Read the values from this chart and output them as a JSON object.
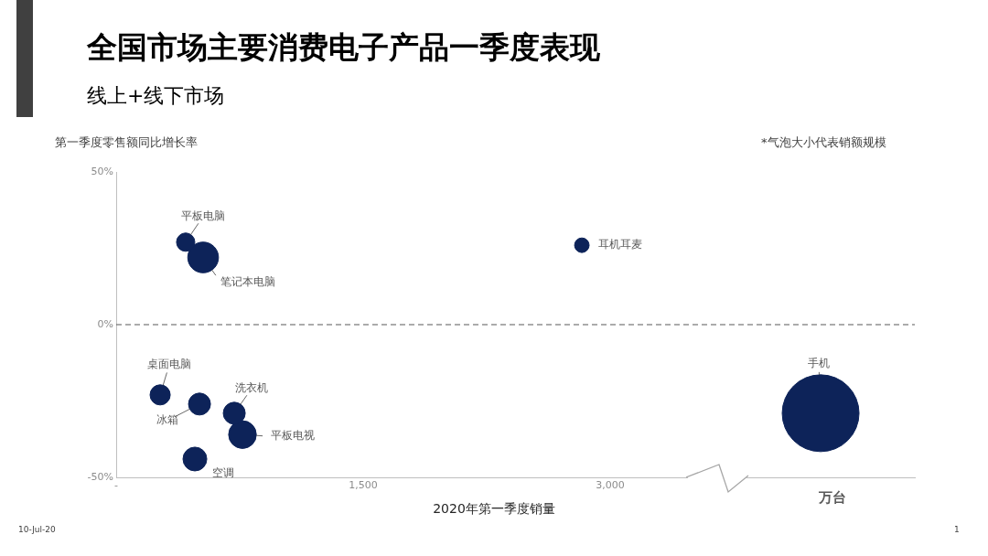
{
  "chart_data": {
    "type": "bubble",
    "title": "全国市场主要消费电子产品一季度表现",
    "subtitle": "线上+线下市场",
    "ylabel": "第一季度零售额同比增长率",
    "xlabel": "2020年第一季度销量",
    "annotations": [
      "*气泡大小代表销额规模",
      "万台",
      "10-Jul-20",
      "1"
    ],
    "series": [
      {
        "name": "平板电脑",
        "color": "#0d2359",
        "x": [
          422
        ],
        "values": [
          27
        ],
        "sizes": [
          0.057
        ]
      },
      {
        "name": "笔记本电脑",
        "color": "#0d2359",
        "x": [
          528
        ],
        "values": [
          22
        ],
        "sizes": [
          0.16
        ]
      },
      {
        "name": "耳机耳麦",
        "color": "#0d2359",
        "x": [
          2828
        ],
        "values": [
          26
        ],
        "sizes": [
          0.036
        ]
      },
      {
        "name": "桌面电脑",
        "color": "#0d2359",
        "x": [
          267
        ],
        "values": [
          -23
        ],
        "sizes": [
          0.069
        ]
      },
      {
        "name": "冰箱",
        "color": "#0d2359",
        "x": [
          506
        ],
        "values": [
          -26
        ],
        "sizes": [
          0.082
        ]
      },
      {
        "name": "洗衣机",
        "color": "#0d2359",
        "x": [
          717
        ],
        "values": [
          -29
        ],
        "sizes": [
          0.082
        ]
      },
      {
        "name": "平板电视",
        "color": "#0d2359",
        "x": [
          767
        ],
        "values": [
          -36
        ],
        "sizes": [
          0.13
        ]
      },
      {
        "name": "空调",
        "color": "#0d2359",
        "x": [
          478
        ],
        "values": [
          -44
        ],
        "sizes": [
          0.096
        ]
      },
      {
        "name": "手机",
        "color": "#0d2359",
        "x": [
          4278
        ],
        "values": [
          -29
        ],
        "sizes": [
          1
        ]
      }
    ],
    "xlim": [
      0,
      4850
    ],
    "xticks": [
      {
        "value": 0,
        "label": "-"
      },
      {
        "value": 1500,
        "label": "1,500"
      },
      {
        "value": 3000,
        "label": "3,000"
      }
    ],
    "ylim": [
      -50,
      50
    ],
    "yticks": [
      {
        "value": -50,
        "label": "-50%"
      },
      {
        "value": 0,
        "label": "0%"
      },
      {
        "value": 50,
        "label": "50%"
      }
    ],
    "ref_lines": [
      {
        "axis": "y",
        "value": 0,
        "color": "#595959",
        "line_style": "dashed"
      }
    ],
    "grid": false,
    "legend": false
  }
}
